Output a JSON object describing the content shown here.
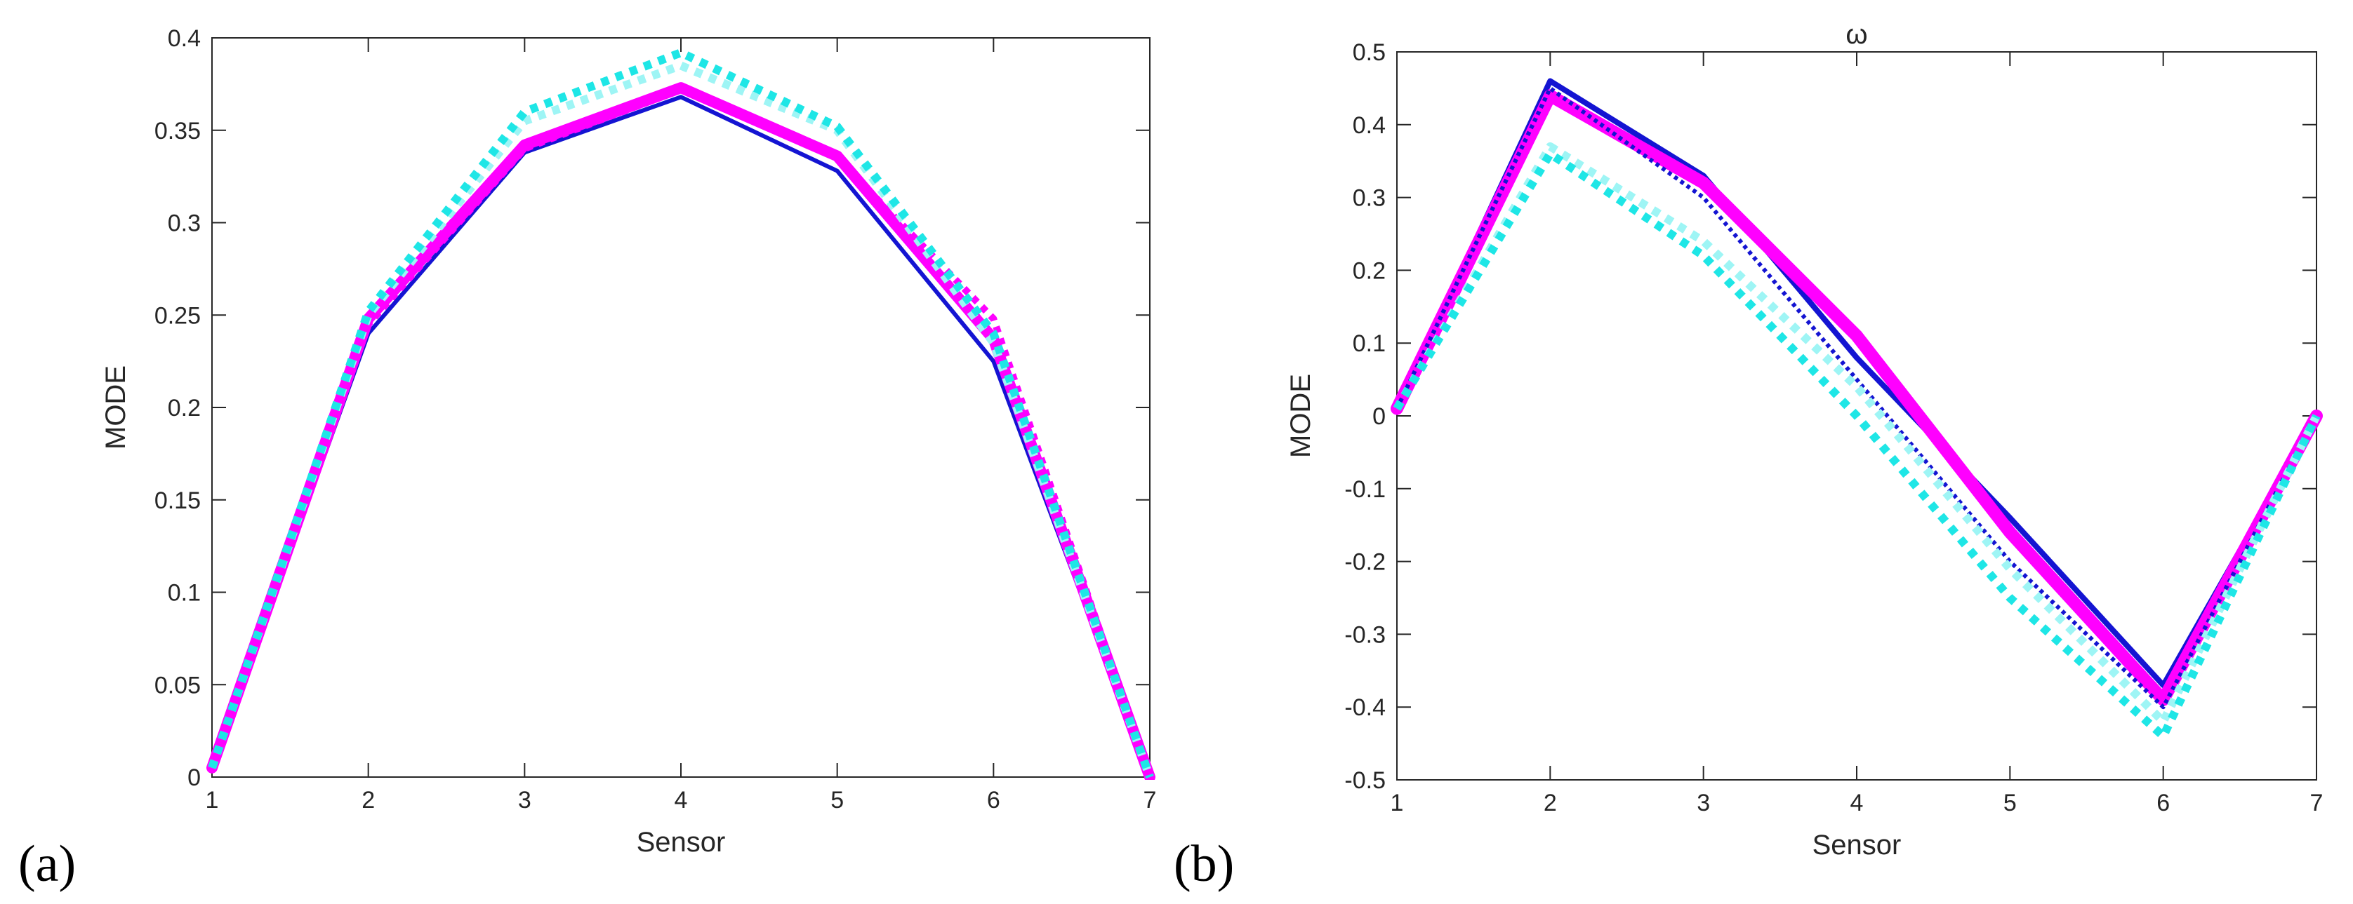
{
  "chart_data": [
    {
      "type": "line",
      "panel_label": "(a)",
      "title": "",
      "xlabel": "Sensor",
      "ylabel": "MODE",
      "x": [
        1,
        2,
        3,
        4,
        5,
        6,
        7
      ],
      "xlim": [
        1,
        7
      ],
      "ylim": [
        0,
        0.4
      ],
      "xticks": [
        1,
        2,
        3,
        4,
        5,
        6,
        7
      ],
      "yticks": [
        0,
        0.05,
        0.1,
        0.15,
        0.2,
        0.25,
        0.3,
        0.35,
        0.4
      ],
      "ytick_labels": [
        "0",
        "0.05",
        "0.1",
        "0.15",
        "0.2",
        "0.25",
        "0.3",
        "0.35",
        "0.4"
      ],
      "grid": false,
      "series": [
        {
          "name": "blue solid",
          "color": "#1414d2",
          "style": "solid",
          "width": 6,
          "values": [
            0.005,
            0.24,
            0.338,
            0.368,
            0.328,
            0.225,
            0.0
          ]
        },
        {
          "name": "magenta solid",
          "color": "#ff00ff",
          "style": "solid",
          "width": 16,
          "values": [
            0.005,
            0.248,
            0.342,
            0.373,
            0.336,
            0.237,
            0.0
          ]
        },
        {
          "name": "magenta dotted",
          "color": "#ff00ff",
          "style": "dotted",
          "width": 10,
          "values": [
            0.005,
            0.245,
            0.34,
            0.372,
            0.335,
            0.248,
            0.0
          ]
        },
        {
          "name": "cyan light dotted",
          "color": "#9ef5f5",
          "style": "dotted",
          "width": 12,
          "values": [
            0.005,
            0.25,
            0.355,
            0.385,
            0.35,
            0.235,
            0.0
          ]
        },
        {
          "name": "cyan dotted",
          "color": "#1ee6e6",
          "style": "dotted",
          "width": 12,
          "values": [
            0.005,
            0.252,
            0.36,
            0.392,
            0.352,
            0.24,
            0.0
          ]
        }
      ]
    },
    {
      "type": "line",
      "panel_label": "(b)",
      "title": "ω",
      "xlabel": "Sensor",
      "ylabel": "MODE",
      "x": [
        1,
        2,
        3,
        4,
        5,
        6,
        7
      ],
      "xlim": [
        1,
        7
      ],
      "ylim": [
        -0.5,
        0.5
      ],
      "xticks": [
        1,
        2,
        3,
        4,
        5,
        6,
        7
      ],
      "yticks": [
        -0.5,
        -0.4,
        -0.3,
        -0.2,
        -0.1,
        0,
        0.1,
        0.2,
        0.3,
        0.4,
        0.5
      ],
      "ytick_labels": [
        "-0.5",
        "-0.4",
        "-0.3",
        "-0.2",
        "-0.1",
        "0",
        "0.1",
        "0.2",
        "0.3",
        "0.4",
        "0.5"
      ],
      "grid": false,
      "series": [
        {
          "name": "blue solid",
          "color": "#1414d2",
          "style": "solid",
          "width": 8,
          "values": [
            0.01,
            0.46,
            0.33,
            0.08,
            -0.14,
            -0.37,
            0.0
          ]
        },
        {
          "name": "magenta solid",
          "color": "#ff00ff",
          "style": "solid",
          "width": 18,
          "values": [
            0.01,
            0.44,
            0.32,
            0.11,
            -0.16,
            -0.39,
            0.0
          ]
        },
        {
          "name": "blue dotted",
          "color": "#1414d2",
          "style": "dotted",
          "width": 6,
          "values": [
            0.01,
            0.45,
            0.3,
            0.05,
            -0.2,
            -0.4,
            0.0
          ]
        },
        {
          "name": "cyan light dotted",
          "color": "#9ef5f5",
          "style": "dotted",
          "width": 12,
          "values": [
            0.01,
            0.37,
            0.24,
            0.04,
            -0.21,
            -0.42,
            0.0
          ]
        },
        {
          "name": "cyan dotted",
          "color": "#1ee6e6",
          "style": "dotted",
          "width": 12,
          "values": [
            0.01,
            0.36,
            0.22,
            0.0,
            -0.25,
            -0.44,
            0.0
          ]
        }
      ]
    }
  ]
}
